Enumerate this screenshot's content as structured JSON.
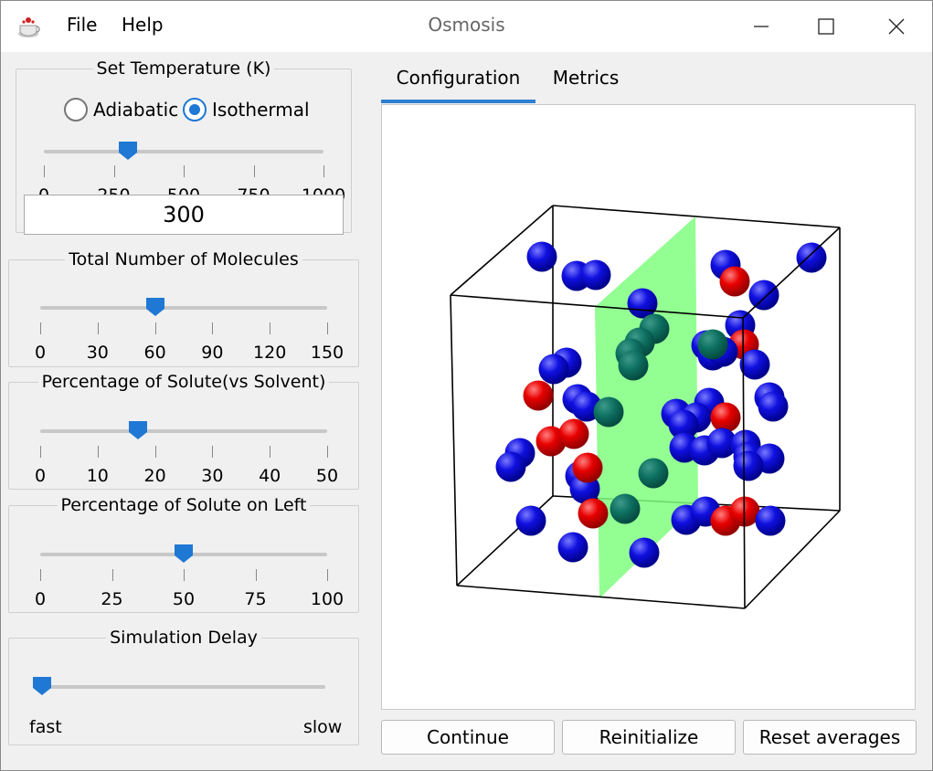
{
  "window": {
    "title": "Osmosis",
    "menu": [
      "File",
      "Help"
    ]
  },
  "temperature": {
    "legend": "Set Temperature (K)",
    "modes": [
      {
        "label": "Adiabatic",
        "checked": false
      },
      {
        "label": "Isothermal",
        "checked": true
      }
    ],
    "tick_labels": [
      "0",
      "250",
      "500",
      "750",
      "1000"
    ],
    "min": 0,
    "max": 1000,
    "value": 300,
    "value_text": "300"
  },
  "molecules": {
    "legend": "Total Number of Molecules",
    "tick_labels": [
      "0",
      "30",
      "60",
      "90",
      "120",
      "150"
    ],
    "min": 0,
    "max": 150,
    "value": 60
  },
  "solute_pct": {
    "legend": "Percentage of Solute(vs Solvent)",
    "tick_labels": [
      "0",
      "10",
      "20",
      "30",
      "40",
      "50"
    ],
    "min": 0,
    "max": 50,
    "value": 17
  },
  "solute_left": {
    "legend": "Percentage of Solute on Left",
    "tick_labels": [
      "0",
      "25",
      "50",
      "75",
      "100"
    ],
    "min": 0,
    "max": 100,
    "value": 50
  },
  "delay": {
    "legend": "Simulation Delay",
    "min_label": "fast",
    "max_label": "slow",
    "value_fraction": 0
  },
  "tabs": [
    {
      "label": "Configuration",
      "active": true
    },
    {
      "label": "Metrics",
      "active": false
    }
  ],
  "buttons": {
    "continue": "Continue",
    "reinitialize": "Reinitialize",
    "reset": "Reset averages"
  },
  "colors": {
    "solvent": "#0000d8",
    "solute": "#e00000",
    "membrane": "#7dff7d",
    "accent": "#1e78d4"
  }
}
